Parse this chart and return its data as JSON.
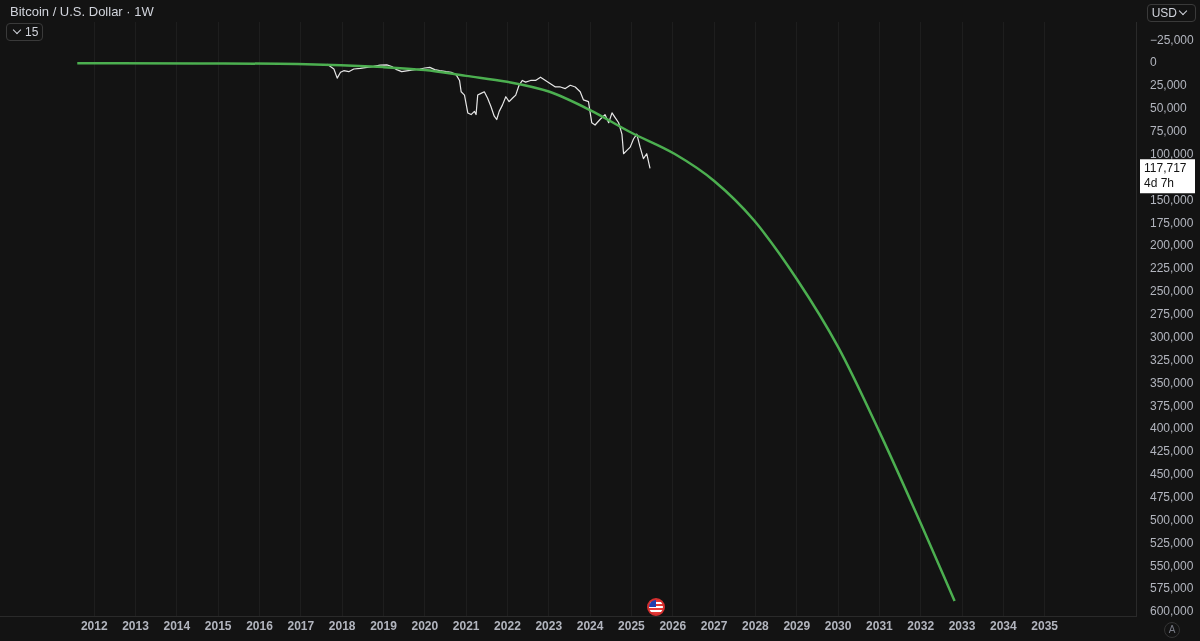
{
  "chart_data": {
    "type": "line",
    "title": "Bitcoin / U.S. Dollar · 1W",
    "xlim": [
      2009.72,
      2037.21
    ],
    "ylim": [
      605000,
      -45000
    ],
    "xticks": [
      2012,
      2013,
      2014,
      2015,
      2016,
      2017,
      2018,
      2019,
      2020,
      2021,
      2022,
      2023,
      2024,
      2025,
      2026,
      2027,
      2028,
      2029,
      2030,
      2031,
      2032,
      2033,
      2034,
      2035
    ],
    "yticks": [
      {
        "value": -25000,
        "label": "−25,000"
      },
      0,
      {
        "value": 25000,
        "label": "25,000"
      },
      {
        "value": 50000,
        "label": "50,000"
      },
      {
        "value": 75000,
        "label": "75,000"
      },
      {
        "value": 100000,
        "label": "100,000"
      },
      {
        "value": 150000,
        "label": "150,000"
      },
      {
        "value": 175000,
        "label": "175,000"
      },
      {
        "value": 200000,
        "label": "200,000"
      },
      {
        "value": 225000,
        "label": "225,000"
      },
      {
        "value": 250000,
        "label": "250,000"
      },
      {
        "value": 275000,
        "label": "275,000"
      },
      {
        "value": 300000,
        "label": "300,000"
      },
      {
        "value": 325000,
        "label": "325,000"
      },
      {
        "value": 350000,
        "label": "350,000"
      },
      {
        "value": 375000,
        "label": "375,000"
      },
      {
        "value": 400000,
        "label": "400,000"
      },
      {
        "value": 425000,
        "label": "425,000"
      },
      {
        "value": 450000,
        "label": "450,000"
      },
      {
        "value": 475000,
        "label": "475,000"
      },
      {
        "value": 500000,
        "label": "500,000"
      },
      {
        "value": 525000,
        "label": "525,000"
      },
      {
        "value": 550000,
        "label": "550,000"
      },
      {
        "value": 575000,
        "label": "575,000"
      },
      {
        "value": 600000,
        "label": "600,000"
      }
    ],
    "grid": "x",
    "legend": false,
    "marker": "none",
    "line_style": "solid",
    "series": [
      {
        "color": "#4caf50",
        "x": [
          2011.59,
          2014.52,
          2016.92,
          2018.99,
          2020.0,
          2021.0,
          2021.99,
          2023.0,
          2024.0,
          2024.99,
          2026.05,
          2027.01,
          2027.97,
          2029.0,
          2030.01,
          2030.99,
          2032.0,
          2032.82
        ],
        "values": [
          0,
          300,
          1000,
          4300,
          7500,
          13900,
          20300,
          31000,
          51300,
          75800,
          99300,
          129000,
          172000,
          236000,
          311000,
          402000,
          503000,
          588000
        ]
      },
      {
        "color": "#e6e6e6",
        "x": [
          2017.64,
          2017.8,
          2017.88,
          2017.96,
          2018.04,
          2018.16,
          2018.28,
          2018.44,
          2018.6,
          2018.76,
          2018.92,
          2019.08,
          2019.2,
          2019.32,
          2019.44,
          2019.56,
          2019.72,
          2019.88,
          2020.0,
          2020.12,
          2020.24,
          2020.36,
          2020.52,
          2020.64,
          2020.76,
          2020.84,
          2020.88,
          2020.96,
          2021.04,
          2021.12,
          2021.2,
          2021.24,
          2021.28,
          2021.36,
          2021.44,
          2021.52,
          2021.6,
          2021.68,
          2021.74,
          2021.8,
          2021.88,
          2021.96,
          2022.04,
          2022.12,
          2022.2,
          2022.28,
          2022.36,
          2022.44,
          2022.56,
          2022.68,
          2022.8,
          2022.92,
          2023.04,
          2023.16,
          2023.28,
          2023.4,
          2023.52,
          2023.64,
          2023.76,
          2023.84,
          2023.96,
          2024.04,
          2024.12,
          2024.24,
          2024.36,
          2024.45,
          2024.53,
          2024.61,
          2024.69,
          2024.77,
          2024.81,
          2024.89,
          2024.97,
          2025.05,
          2025.13,
          2025.21,
          2025.29,
          2025.37,
          2025.45
        ],
        "values": [
          1100,
          6400,
          16400,
          10000,
          8200,
          9300,
          6400,
          5700,
          4600,
          3600,
          2100,
          1800,
          3600,
          7100,
          9300,
          8500,
          7500,
          6400,
          5300,
          4600,
          7100,
          8200,
          9300,
          10000,
          12800,
          18900,
          31300,
          34900,
          54400,
          56200,
          52700,
          56200,
          34900,
          33000,
          31300,
          38400,
          47400,
          58000,
          61600,
          52700,
          45600,
          36700,
          42000,
          38400,
          34900,
          24200,
          18900,
          20700,
          18900,
          18900,
          15300,
          18900,
          22400,
          26000,
          26000,
          27800,
          24200,
          26000,
          31300,
          40200,
          42000,
          65100,
          67600,
          61600,
          56200,
          65100,
          54400,
          59800,
          65100,
          77600,
          99000,
          95400,
          91800,
          82900,
          77600,
          91800,
          104300,
          99000,
          115000
        ]
      }
    ],
    "annotations": [
      "15",
      "USD",
      "117,717",
      "4d 7h",
      "A"
    ]
  }
}
